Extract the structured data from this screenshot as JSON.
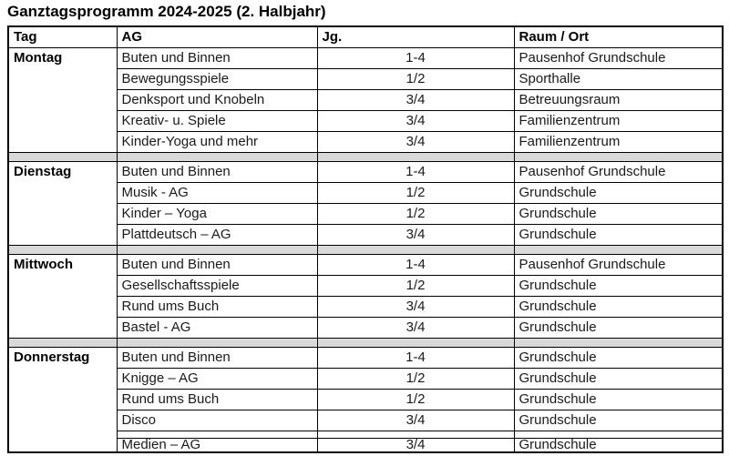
{
  "title": "Ganztagsprogramm 2024-2025 (2. Halbjahr)",
  "table": {
    "headers": [
      "Tag",
      "AG",
      "Jg.",
      "Raum / Ort"
    ],
    "days": [
      {
        "day": "Montag",
        "rows": [
          {
            "ag": "Buten und Binnen",
            "jg": "1-4",
            "raum": "Pausenhof Grundschule"
          },
          {
            "ag": "Bewegungsspiele",
            "jg": "1/2",
            "raum": "Sporthalle"
          },
          {
            "ag": "Denksport und Knobeln",
            "jg": "3/4",
            "raum": "Betreuungsraum"
          },
          {
            "ag": "Kreativ- u. Spiele",
            "jg": "3/4",
            "raum": "Familienzentrum"
          },
          {
            "ag": "Kinder-Yoga und mehr",
            "jg": "3/4",
            "raum": "Familienzentrum"
          }
        ]
      },
      {
        "day": "Dienstag",
        "rows": [
          {
            "ag": "Buten und Binnen",
            "jg": "1-4",
            "raum": "Pausenhof Grundschule"
          },
          {
            "ag": "Musik - AG",
            "jg": "1/2",
            "raum": "Grundschule"
          },
          {
            "ag": "Kinder – Yoga",
            "jg": "1/2",
            "raum": "Grundschule"
          },
          {
            "ag": "Plattdeutsch – AG",
            "jg": "3/4",
            "raum": "Grundschule"
          }
        ]
      },
      {
        "day": "Mittwoch",
        "rows": [
          {
            "ag": "Buten und Binnen",
            "jg": "1-4",
            "raum": "Pausenhof Grundschule"
          },
          {
            "ag": "Gesellschaftsspiele",
            "jg": "1/2",
            "raum": "Grundschule"
          },
          {
            "ag": "Rund ums Buch",
            "jg": "3/4",
            "raum": "Grundschule"
          },
          {
            "ag": "Bastel - AG",
            "jg": "3/4",
            "raum": "Grundschule"
          }
        ]
      },
      {
        "day": "Donnerstag",
        "rows": [
          {
            "ag": "Buten und Binnen",
            "jg": "1-4",
            "raum": "Grundschule"
          },
          {
            "ag": "Knigge – AG",
            "jg": "1/2",
            "raum": "Grundschule"
          },
          {
            "ag": "Rund ums Buch",
            "jg": "1/2",
            "raum": "Grundschule"
          },
          {
            "ag": "Disco",
            "jg": "3/4",
            "raum": "Grundschule"
          },
          {
            "ag": "Medien – AG",
            "jg": "3/4",
            "raum": "Grundschule",
            "gap_before": true
          }
        ]
      }
    ],
    "colors": {
      "separator_bg": "#d9d9d9",
      "border": "#000000",
      "text": "#1a1a1a"
    }
  }
}
